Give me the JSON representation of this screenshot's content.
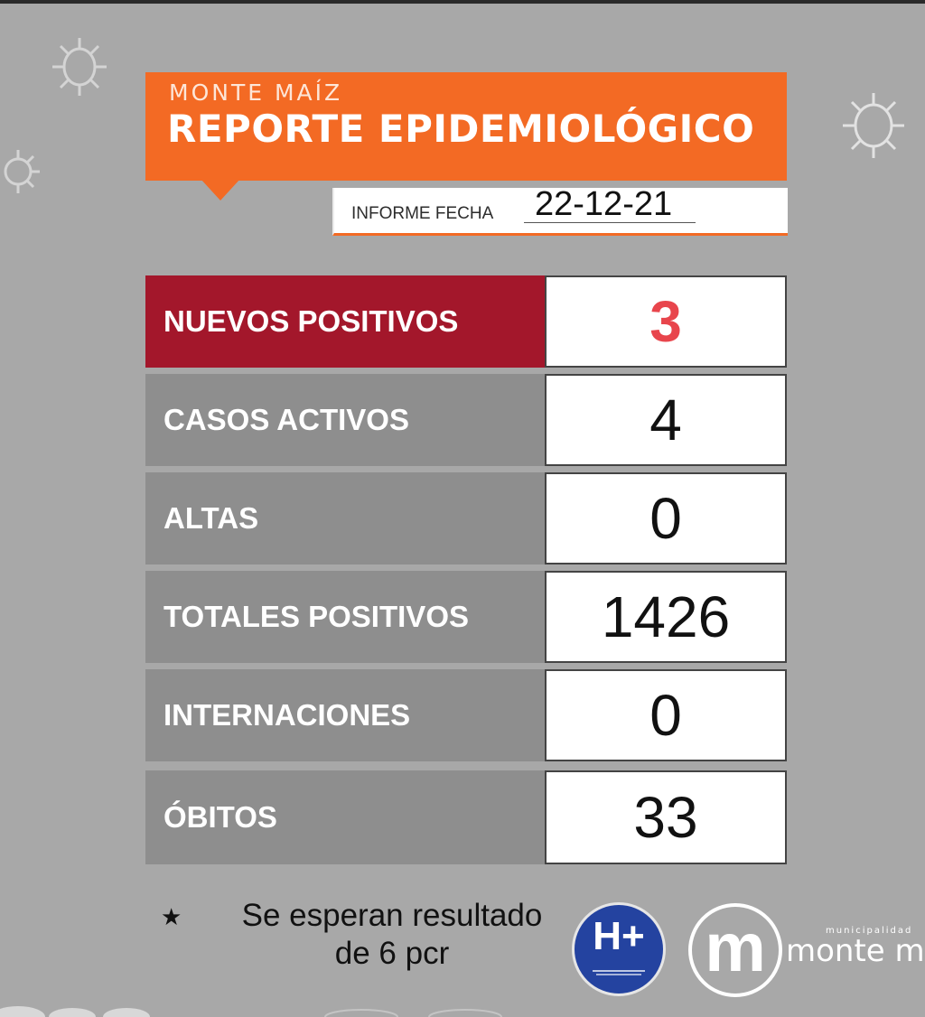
{
  "header": {
    "subtitle": "MONTE MAÍZ",
    "title": "REPORTE EPIDEMIOLÓGICO",
    "date_label": "INFORME FECHA",
    "date_value": "22-12-21"
  },
  "rows": [
    {
      "label": "NUEVOS POSITIVOS",
      "value": "3"
    },
    {
      "label": "CASOS ACTIVOS",
      "value": "4"
    },
    {
      "label": "ALTAS",
      "value": "0"
    },
    {
      "label": "TOTALES POSITIVOS",
      "value": "1426"
    },
    {
      "label": "INTERNACIONES",
      "value": "0"
    },
    {
      "label": "ÓBITOS",
      "value": "33"
    }
  ],
  "footnote": {
    "star": "★",
    "line1": "Se esperan resultado",
    "line2": "de 6 pcr"
  },
  "logos": {
    "hplus_text": "H+",
    "municipality_letter": "m",
    "municipality_small": "municipalidad",
    "municipality_big": "monte m"
  },
  "colors": {
    "background": "#a8a8a8",
    "header_orange": "#f36a24",
    "highlight_red": "#a3172b",
    "row_gray": "#8e8e8e",
    "positive_value_red": "#e8454c",
    "hplus_blue": "#2443a0"
  }
}
